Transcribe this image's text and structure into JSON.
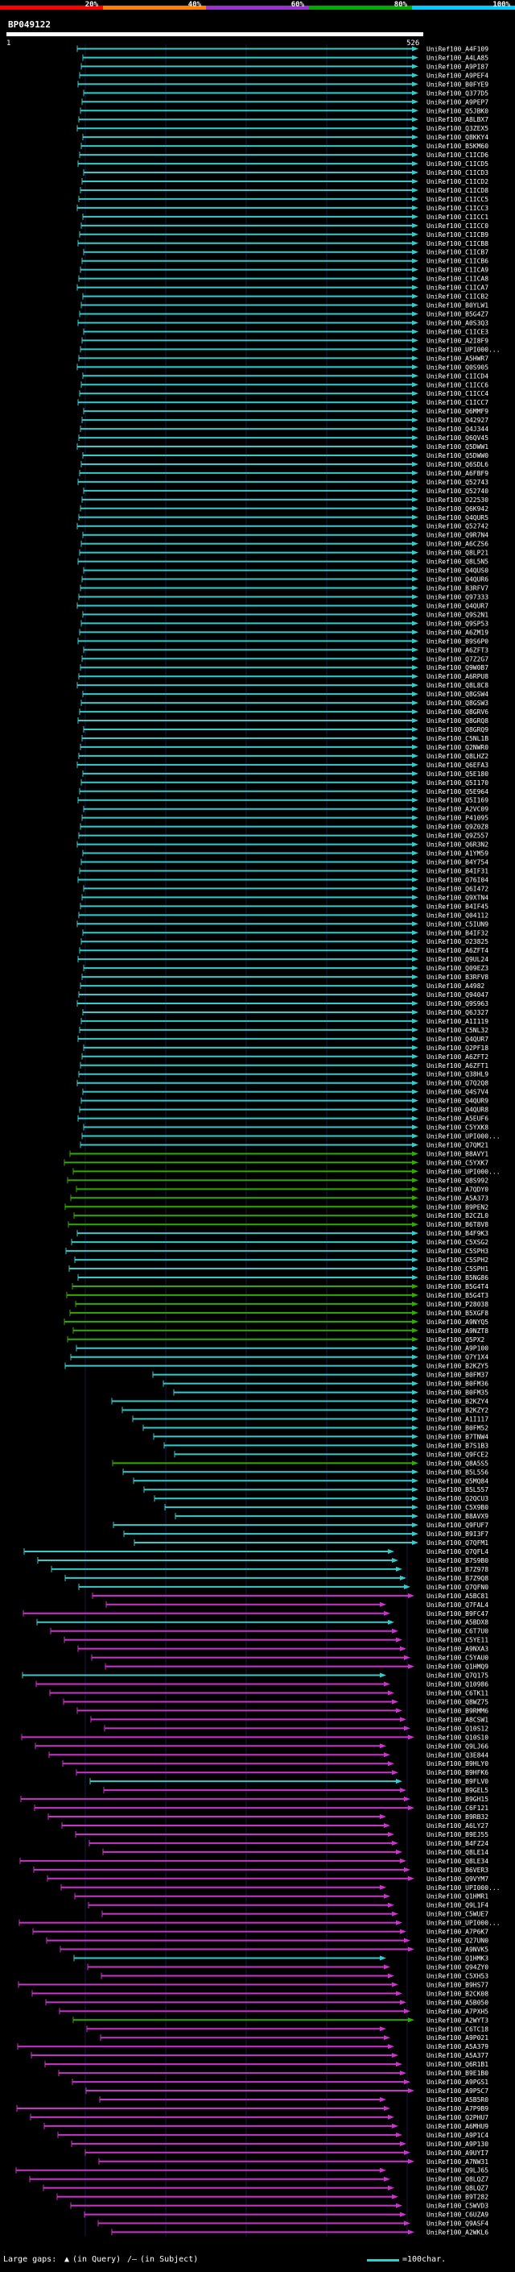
{
  "query": {
    "id": "BP049122",
    "start": "1",
    "end": "526"
  },
  "legend": {
    "labels": [
      "20%",
      "40%",
      "60%",
      "80%",
      "100%"
    ],
    "colors": [
      "#ff0000",
      "#ff8000",
      "#9933cc",
      "#00aa00",
      "#00ccff"
    ]
  },
  "colors": {
    "cyan": "#33cccc",
    "green": "#33aa00",
    "magenta": "#cc33cc"
  },
  "footer": {
    "large_gaps": "Large gaps:",
    "in_query": "(in Query)",
    "in_subject": "(in Subject)",
    "scale": "=100char."
  },
  "hits": [
    "UniRef100_A4F109",
    "UniRef100_A4LA85",
    "UniRef100_A9PI87",
    "UniRef100_A9PEF4",
    "UniRef100_B0FYE9",
    "UniRef100_Q377D5",
    "UniRef100_A9PEP7",
    "UniRef100_Q5JBK0",
    "UniRef100_A8LBX7",
    "UniRef100_Q3ZEX5",
    "UniRef100_Q8KKY4",
    "UniRef100_B5KM60",
    "UniRef100_C1ICD6",
    "UniRef100_C1ICD5",
    "UniRef100_C1ICD3",
    "UniRef100_C1ICD2",
    "UniRef100_C1ICD8",
    "UniRef100_C1ICC5",
    "UniRef100_C1ICC3",
    "UniRef100_C1ICC1",
    "UniRef100_C1ICC0",
    "UniRef100_C1ICB9",
    "UniRef100_C1ICB8",
    "UniRef100_C1ICB7",
    "UniRef100_C1ICB6",
    "UniRef100_C1ICA9",
    "UniRef100_C1ICA8",
    "UniRef100_C1ICA7",
    "UniRef100_C1ICB2",
    "UniRef100_B0YLW1",
    "UniRef100_B5G4Z7",
    "UniRef100_A0S3Q3",
    "UniRef100_C1ICE3",
    "UniRef100_A2I8F9",
    "UniRef100_UPI000...",
    "UniRef100_A5HWR7",
    "UniRef100_Q0S905",
    "UniRef100_C1ICD4",
    "UniRef100_C1ICC6",
    "UniRef100_C1ICC4",
    "UniRef100_C1ICC7",
    "UniRef100_Q6MMF9",
    "UniRef100_Q42927",
    "UniRef100_Q4J344",
    "UniRef100_Q6QV45",
    "UniRef100_Q5DWW1",
    "UniRef100_Q5DWW0",
    "UniRef100_Q6SDL6",
    "UniRef100_A6FBF9",
    "UniRef100_Q52743",
    "UniRef100_Q52740",
    "UniRef100_O22530",
    "UniRef100_Q6K942",
    "UniRef100_Q4QUR5",
    "UniRef100_Q52742",
    "UniRef100_Q9R7N4",
    "UniRef100_A6CZS6",
    "UniRef100_Q8LP21",
    "UniRef100_Q8L5N5",
    "UniRef100_Q4QUS0",
    "UniRef100_Q4QUR6",
    "UniRef100_B3RFV7",
    "UniRef100_Q97333",
    "UniRef100_Q4QUR7",
    "UniRef100_Q9S2N1",
    "UniRef100_Q9SP53",
    "UniRef100_A6ZM19",
    "UniRef100_B9S6P0",
    "UniRef100_A6ZFT3",
    "UniRef100_Q7Z2G7",
    "UniRef100_Q9W0B7",
    "UniRef100_A6RPU8",
    "UniRef100_Q8L8C8",
    "UniRef100_Q8GSW4",
    "UniRef100_Q8GSW3",
    "UniRef100_Q8GRV6",
    "UniRef100_Q8GRQ8",
    "UniRef100_Q8GRQ9",
    "UniRef100_C5NL1B",
    "UniRef100_Q2NWR0",
    "UniRef100_Q8LHZ2",
    "UniRef100_Q6EFA3",
    "UniRef100_Q5E180",
    "UniRef100_Q5I170",
    "UniRef100_Q5E964",
    "UniRef100_Q5I169",
    "UniRef100_A2VC09",
    "UniRef100_P41095",
    "UniRef100_Q9Z0Z8",
    "UniRef100_Q9Z557",
    "UniRef100_Q6R3N2",
    "UniRef100_A1YM59",
    "UniRef100_B4Y754",
    "UniRef100_B4IF31",
    "UniRef100_Q76I04",
    "UniRef100_Q6I472",
    "UniRef100_Q9XTN4",
    "UniRef100_B4IF45",
    "UniRef100_Q04112",
    "UniRef100_C5IUN9",
    "UniRef100_B4IF32",
    "UniRef100_O23825",
    "UniRef100_A6ZFT4",
    "UniRef100_Q9UL24",
    "UniRef100_Q09EZ3",
    "UniRef100_B3RFV8",
    "UniRef100_A4982",
    "UniRef100_Q94047",
    "UniRef100_Q9S963",
    "UniRef100_Q6J327",
    "UniRef100_A1I119",
    "UniRef100_C5NL32",
    "UniRef100_Q4QUR7",
    "UniRef100_Q2PF18",
    "UniRef100_A6ZFT2",
    "UniRef100_A6ZFT1",
    "UniRef100_Q38HL9",
    "UniRef100_Q7Q2Q8",
    "UniRef100_Q4S7V4",
    "UniRef100_Q4QUR9",
    "UniRef100_Q4QUR8",
    "UniRef100_A5EUF6",
    "UniRef100_C5YXK8",
    "UniRef100_UPI000...",
    "UniRef100_Q7QM21",
    "UniRef100_B8AVY1",
    "UniRef100_C5YXK7",
    "UniRef100_UPI000...",
    "UniRef100_Q8S992",
    "UniRef100_A7QDY0",
    "UniRef100_A5A373",
    "UniRef100_B9PEN2",
    "UniRef100_B2CZL0",
    "UniRef100_B6T8V8",
    "UniRef100_B4F9K3",
    "UniRef100_C5XSG2",
    "UniRef100_C5SPH3",
    "UniRef100_C5SPH2",
    "UniRef100_C5SPH1",
    "UniRef100_B5NG86",
    "UniRef100_B5G4T4",
    "UniRef100_B5G4T3",
    "UniRef100_P28038",
    "UniRef100_B5XGF8",
    "UniRef100_A9NYQ5",
    "UniRef100_A9NZT8",
    "UniRef100_Q5PX2",
    "UniRef100_A9P100",
    "UniRef100_Q7Y1X4",
    "UniRef100_B2KZY5",
    "UniRef100_B0FM37",
    "UniRef100_B0FM36",
    "UniRef100_B0FM35",
    "UniRef100_B2KZY4",
    "UniRef100_B2KZY2",
    "UniRef100_A1I117",
    "UniRef100_B0FM52",
    "UniRef100_B7TNW4",
    "UniRef100_B7S1B3",
    "UniRef100_Q9FCE2",
    "UniRef100_Q8A5S5",
    "UniRef100_B5L556",
    "UniRef100_Q5MQ84",
    "UniRef100_B5L557",
    "UniRef100_Q2QCU3",
    "UniRef100_C5X9B0",
    "UniRef100_B8AVX9",
    "UniRef100_Q9FUF7",
    "UniRef100_B9I3F7",
    "UniRef100_Q7QFM1",
    "UniRef100_Q7QFL4",
    "UniRef100_B7S9B0",
    "UniRef100_B7Z978",
    "UniRef100_B7Z9Q8",
    "UniRef100_Q7QFN0",
    "UniRef100_A5BC81",
    "UniRef100_Q7FAL4",
    "UniRef100_B9FC47",
    "UniRef100_A5BDX8",
    "UniRef100_C6T7U0",
    "UniRef100_C5YE11",
    "UniRef100_A9NXA3",
    "UniRef100_C5YAU0",
    "UniRef100_Q1HMQ9",
    "UniRef100_Q7Q175",
    "UniRef100_Q10986",
    "UniRef100_C6TK11",
    "UniRef100_Q8WZ75",
    "UniRef100_B9RMM6",
    "UniRef100_A8CSW1",
    "UniRef100_Q10S12",
    "UniRef100_Q10S10",
    "UniRef100_Q9LJ66",
    "UniRef100_Q3E844",
    "UniRef100_B9HLY0",
    "UniRef100_B9HFK6",
    "UniRef100_B9FLV0",
    "UniRef100_B9GEL5",
    "UniRef100_B9GH15",
    "UniRef100_C6F121",
    "UniRef100_B9RB32",
    "UniRef100_A6LY27",
    "UniRef100_B9EJ55",
    "UniRef100_B4FZ24",
    "UniRef100_Q8LE14",
    "UniRef100_Q8LE34",
    "UniRef100_B6VER3",
    "UniRef100_Q9VYM7",
    "UniRef100_UPI000...",
    "UniRef100_Q1HMR1",
    "UniRef100_Q9L1F4",
    "UniRef100_C5WUE7",
    "UniRef100_UPI000...",
    "UniRef100_A7P6K7",
    "UniRef100_Q27UN0",
    "UniRef100_A9NVK5",
    "UniRef100_Q1HMK3",
    "UniRef100_Q94ZY0",
    "UniRef100_C5XH53",
    "UniRef100_B9HS77",
    "UniRef100_B2CK08",
    "UniRef100_A5B050",
    "UniRef100_A7PXH5",
    "UniRef100_A2WYT3",
    "UniRef100_C6TC18",
    "UniRef100_A9P021",
    "UniRef100_A5A379",
    "UniRef100_A5A377",
    "UniRef100_Q6R1B1",
    "UniRef100_B9E1B0",
    "UniRef100_A9PGS1",
    "UniRef100_A9P5C7",
    "UniRef100_A5B5R0",
    "UniRef100_A7P9B9",
    "UniRef100_Q2PHU7",
    "UniRef100_A6MHU9",
    "UniRef100_A9P1C4",
    "UniRef100_A9P130",
    "UniRef100_A9UYI7",
    "UniRef100_A7NW31",
    "UniRef100_Q9LJ65",
    "UniRef100_Q8LQZ7",
    "UniRef100_Q8LQZ7",
    "UniRef100_B9T282",
    "UniRef100_C5WVD3",
    "UniRef100_C6UZA9",
    "UniRef100_Q9ASF4",
    "UniRef100_A2WKL6"
  ]
}
